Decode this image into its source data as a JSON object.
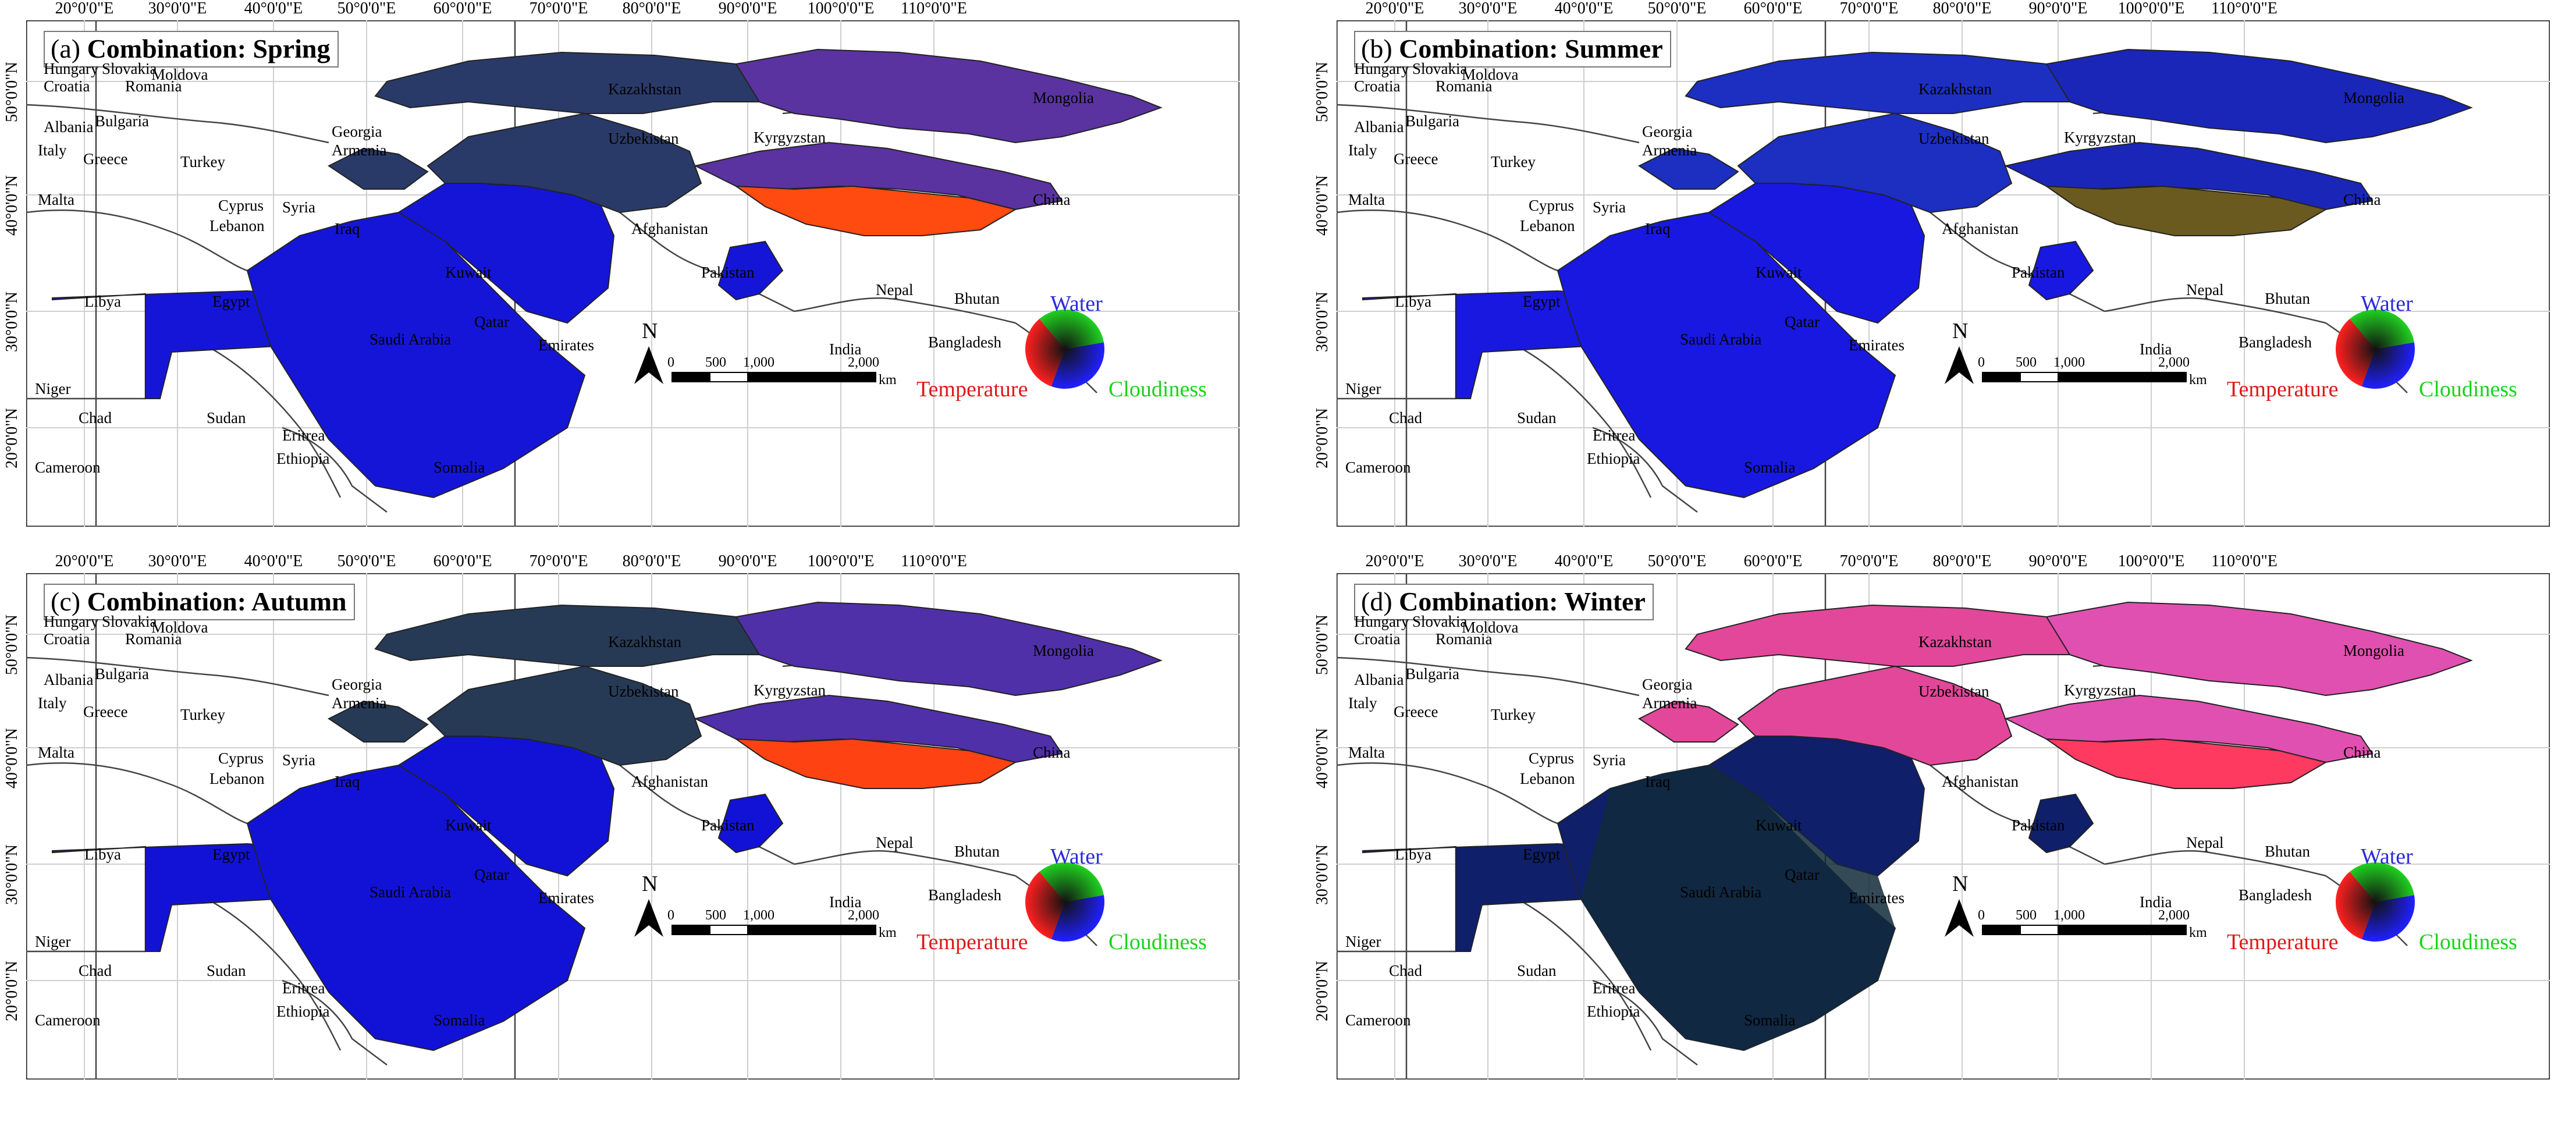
{
  "panels": [
    {
      "id": "a",
      "label": "(a)",
      "title": "Combination: Spring",
      "season": "spring"
    },
    {
      "id": "b",
      "label": "(b)",
      "title": "Combination: Summer",
      "season": "summer"
    },
    {
      "id": "c",
      "label": "(c)",
      "title": "Combination: Autumn",
      "season": "autumn"
    },
    {
      "id": "d",
      "label": "(d)",
      "title": "Combination: Winter",
      "season": "winter"
    }
  ],
  "longitude_ticks": [
    "20°0'0\"E",
    "30°0'0\"E",
    "40°0'0\"E",
    "50°0'0\"E",
    "60°0'0\"E",
    "70°0'0\"E",
    "80°0'0\"E",
    "90°0'0\"E",
    "100°0'0\"E",
    "110°0'0\"E"
  ],
  "latitude_ticks": [
    "50°0'0\"N",
    "40°0'0\"N",
    "30°0'0\"N",
    "20°0'0\"N"
  ],
  "countries": [
    "Hungary",
    "Slovakia",
    "Moldova",
    "Romania",
    "Croatia",
    "Albania",
    "Bulgaria",
    "Italy",
    "Greece",
    "Turkey",
    "Georgia",
    "Armenia",
    "Kazakhstan",
    "Mongolia",
    "Uzbekistan",
    "Kyrgyzstan",
    "Cyprus",
    "Syria",
    "Lebanon",
    "Iraq",
    "Malta",
    "Afghanistan",
    "China",
    "Libya",
    "Egypt",
    "Kuwait",
    "Pakistan",
    "Nepal",
    "Bhutan",
    "Qatar",
    "Saudi Arabia",
    "Emirates",
    "India",
    "Bangladesh",
    "Niger",
    "Chad",
    "Sudan",
    "Eritrea",
    "Ethiopia",
    "Somalia",
    "Cameroon"
  ],
  "map_elements": {
    "north_arrow": "N",
    "scale_labels": [
      "0",
      "500",
      "1,000",
      "2,000"
    ],
    "scale_unit": "km"
  },
  "legend": {
    "water": "Water",
    "temperature": "Temperature",
    "cloudiness": "Cloudiness"
  },
  "colors": {
    "water": "#2b2bd9",
    "temperature": "#e01818",
    "cloudiness": "#1bd21b",
    "spring": {
      "base": "#1515d8",
      "north": "#2a3a68",
      "east": "#5a33a0",
      "hot": "#ff4a10"
    },
    "summer": {
      "base": "#1818e0",
      "north": "#1c2fc0",
      "east": "#1a26b8",
      "hot": "#6a5a20"
    },
    "autumn": {
      "base": "#1212d6",
      "north": "#273a55",
      "east": "#5030a8",
      "hot": "#ff4212"
    },
    "winter": {
      "base": "#0f1f6a",
      "north": "#e2479a",
      "east": "#e050b0",
      "hot": "#ff3a60",
      "dark": "#102a3a"
    }
  }
}
